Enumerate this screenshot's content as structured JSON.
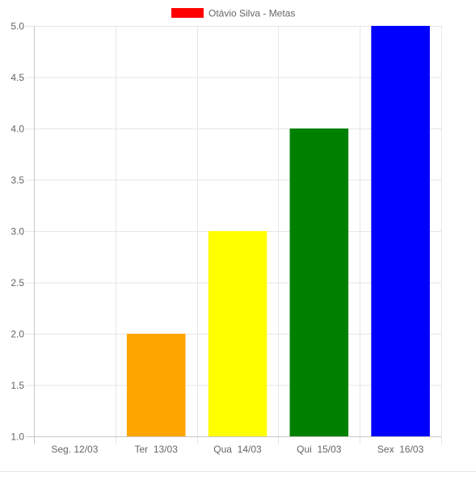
{
  "chart_data": {
    "type": "bar",
    "categories": [
      "Seg. 12/03",
      "Ter  13/03",
      "Qua  14/03",
      "Qui  15/03",
      "Sex  16/03"
    ],
    "series": [
      {
        "name": "Otávio Silva - Metas",
        "values": [
          1,
          2,
          3,
          4,
          5
        ],
        "colors": [
          "#ff0000",
          "#ffa500",
          "#ffff00",
          "#008000",
          "#0000ff"
        ]
      }
    ],
    "legend_color": "#ff0000",
    "legend_position": "top-center",
    "ylim": [
      1,
      5
    ],
    "y_ticks": [
      "1.0",
      "1.5",
      "2.0",
      "2.5",
      "3.0",
      "3.5",
      "4.0",
      "4.5",
      "5.0"
    ],
    "grid": true
  }
}
